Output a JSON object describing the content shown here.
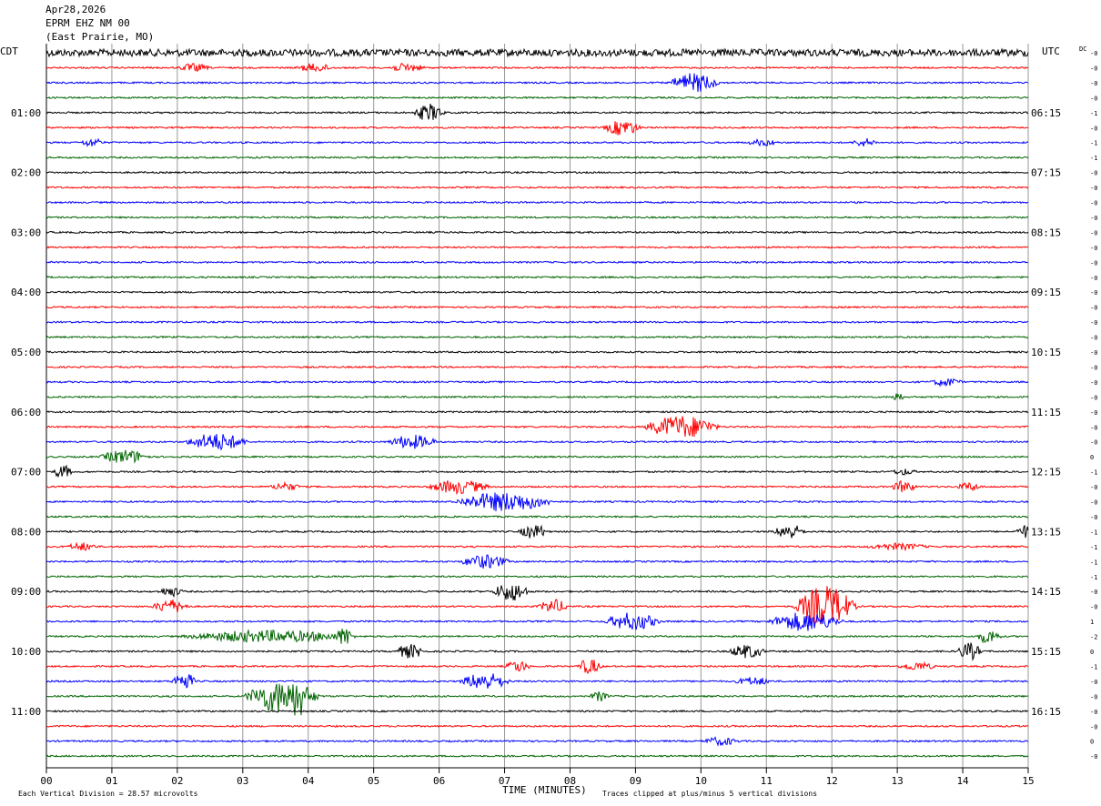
{
  "header": {
    "date": "Apr28,2026",
    "station": "EPRM EHZ NM 00",
    "location": "(East Prairie, MO)"
  },
  "chart_data": {
    "type": "line",
    "subtype": "helicorder",
    "left_timezone": "CDT",
    "right_timezone": "UTC",
    "dc_label": "DC",
    "xlabel": "TIME (MINUTES)",
    "x_ticks": [
      "00",
      "01",
      "02",
      "03",
      "04",
      "05",
      "06",
      "07",
      "08",
      "09",
      "10",
      "11",
      "12",
      "13",
      "14",
      "15"
    ],
    "xlim": [
      0,
      15
    ],
    "trace_colors": [
      "#000000",
      "#ff0000",
      "#0000ff",
      "#006400"
    ],
    "left_hour_labels": [
      "01:00",
      "02:00",
      "03:00",
      "04:00",
      "05:00",
      "06:00",
      "07:00",
      "08:00",
      "09:00",
      "10:00",
      "11:00"
    ],
    "right_hour_labels": [
      "06:15",
      "07:15",
      "08:15",
      "09:15",
      "10:15",
      "11:15",
      "12:15",
      "13:15",
      "14:15",
      "15:15",
      "16:15"
    ],
    "hour_label_lines": [
      4,
      8,
      12,
      16,
      20,
      24,
      28,
      32,
      36,
      40,
      44
    ],
    "line_count": 48,
    "dc_offsets": [
      "-0",
      "-0",
      "-0",
      "-0",
      "-1",
      "-0",
      "-1",
      "-1",
      "-0",
      "-0",
      "-0",
      "-0",
      "-0",
      "-0",
      "-0",
      "-0",
      "-0",
      "-0",
      "-0",
      "-0",
      "-0",
      "-0",
      "-0",
      "-0",
      "-0",
      "-0",
      "-0",
      "0",
      "-1",
      "-0",
      "-0",
      "-0",
      "-1",
      "-1",
      "-1",
      "-1",
      "-0",
      "-0",
      "1",
      "-2",
      "0",
      "-1",
      "-0",
      "-0",
      "-0",
      "-0",
      "0",
      "-0"
    ],
    "events": [
      {
        "line": 0,
        "minute": 0.0,
        "span": 15.0,
        "amp": 3
      },
      {
        "line": 1,
        "minute": 2.0,
        "span": 0.5,
        "amp": 4
      },
      {
        "line": 1,
        "minute": 3.8,
        "span": 0.6,
        "amp": 4
      },
      {
        "line": 1,
        "minute": 5.2,
        "span": 0.6,
        "amp": 4
      },
      {
        "line": 2,
        "minute": 9.5,
        "span": 0.8,
        "amp": 10
      },
      {
        "line": 4,
        "minute": 5.6,
        "span": 0.5,
        "amp": 9
      },
      {
        "line": 5,
        "minute": 8.5,
        "span": 0.6,
        "amp": 8
      },
      {
        "line": 6,
        "minute": 0.5,
        "span": 0.4,
        "amp": 4
      },
      {
        "line": 6,
        "minute": 10.7,
        "span": 0.5,
        "amp": 3
      },
      {
        "line": 6,
        "minute": 12.3,
        "span": 0.4,
        "amp": 4
      },
      {
        "line": 22,
        "minute": 13.5,
        "span": 0.5,
        "amp": 4
      },
      {
        "line": 23,
        "minute": 12.9,
        "span": 0.2,
        "amp": 5
      },
      {
        "line": 25,
        "minute": 9.1,
        "span": 1.2,
        "amp": 12
      },
      {
        "line": 26,
        "minute": 2.1,
        "span": 1.0,
        "amp": 9
      },
      {
        "line": 26,
        "minute": 5.2,
        "span": 0.8,
        "amp": 7
      },
      {
        "line": 27,
        "minute": 0.8,
        "span": 0.8,
        "amp": 7
      },
      {
        "line": 28,
        "minute": 0.1,
        "span": 0.3,
        "amp": 7
      },
      {
        "line": 28,
        "minute": 12.9,
        "span": 0.4,
        "amp": 3
      },
      {
        "line": 29,
        "minute": 3.4,
        "span": 0.5,
        "amp": 4
      },
      {
        "line": 29,
        "minute": 5.8,
        "span": 1.0,
        "amp": 7
      },
      {
        "line": 29,
        "minute": 12.9,
        "span": 0.4,
        "amp": 6
      },
      {
        "line": 29,
        "minute": 13.9,
        "span": 0.4,
        "amp": 4
      },
      {
        "line": 30,
        "minute": 6.2,
        "span": 1.6,
        "amp": 10
      },
      {
        "line": 32,
        "minute": 7.2,
        "span": 0.5,
        "amp": 7
      },
      {
        "line": 32,
        "minute": 11.1,
        "span": 0.5,
        "amp": 8
      },
      {
        "line": 32,
        "minute": 14.8,
        "span": 0.4,
        "amp": 7
      },
      {
        "line": 33,
        "minute": 0.3,
        "span": 0.5,
        "amp": 4
      },
      {
        "line": 33,
        "minute": 12.5,
        "span": 1.0,
        "amp": 3
      },
      {
        "line": 34,
        "minute": 6.3,
        "span": 0.8,
        "amp": 7
      },
      {
        "line": 36,
        "minute": 6.8,
        "span": 0.6,
        "amp": 10
      },
      {
        "line": 36,
        "minute": 1.7,
        "span": 0.4,
        "amp": 5
      },
      {
        "line": 37,
        "minute": 1.6,
        "span": 0.6,
        "amp": 7
      },
      {
        "line": 37,
        "minute": 7.5,
        "span": 0.5,
        "amp": 7
      },
      {
        "line": 37,
        "minute": 11.4,
        "span": 1.0,
        "amp": 22
      },
      {
        "line": 38,
        "minute": 8.5,
        "span": 0.9,
        "amp": 9
      },
      {
        "line": 38,
        "minute": 11.0,
        "span": 1.2,
        "amp": 10
      },
      {
        "line": 39,
        "minute": 2.0,
        "span": 2.8,
        "amp": 6
      },
      {
        "line": 39,
        "minute": 4.4,
        "span": 0.3,
        "amp": 10
      },
      {
        "line": 39,
        "minute": 14.2,
        "span": 0.4,
        "amp": 7
      },
      {
        "line": 40,
        "minute": 5.3,
        "span": 0.5,
        "amp": 7
      },
      {
        "line": 40,
        "minute": 10.4,
        "span": 0.6,
        "amp": 7
      },
      {
        "line": 40,
        "minute": 13.9,
        "span": 0.4,
        "amp": 9
      },
      {
        "line": 41,
        "minute": 7.0,
        "span": 0.4,
        "amp": 6
      },
      {
        "line": 41,
        "minute": 8.1,
        "span": 0.4,
        "amp": 8
      },
      {
        "line": 41,
        "minute": 13.0,
        "span": 0.6,
        "amp": 4
      },
      {
        "line": 42,
        "minute": 1.9,
        "span": 0.4,
        "amp": 9
      },
      {
        "line": 42,
        "minute": 6.3,
        "span": 0.8,
        "amp": 9
      },
      {
        "line": 42,
        "minute": 10.5,
        "span": 0.6,
        "amp": 4
      },
      {
        "line": 43,
        "minute": 3.0,
        "span": 1.2,
        "amp": 18
      },
      {
        "line": 43,
        "minute": 3.7,
        "span": 0.3,
        "amp": 24
      },
      {
        "line": 43,
        "minute": 8.3,
        "span": 0.3,
        "amp": 5
      },
      {
        "line": 46,
        "minute": 10.0,
        "span": 0.6,
        "amp": 4
      }
    ]
  },
  "footer": {
    "scale_text": "Each Vertical Division =   28.57 microvolts",
    "clip_text": "Traces clipped at plus/minus 5 vertical divisions"
  }
}
